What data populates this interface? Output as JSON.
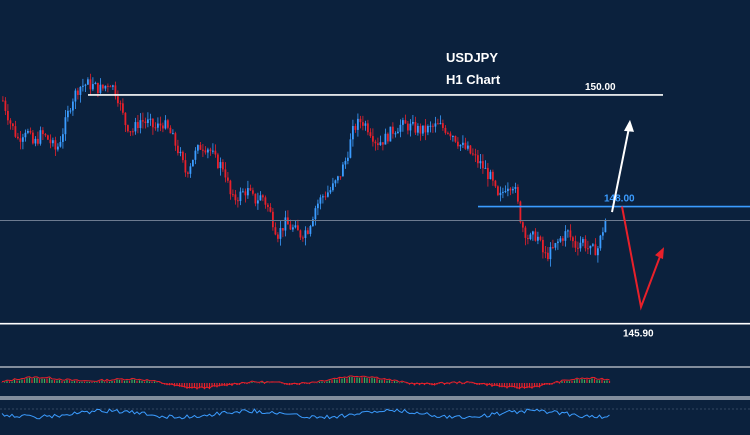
{
  "chart_data": {
    "type": "candlestick",
    "title": "USDJPY",
    "subtitle": "H1 Chart",
    "instrument": "USDJPY",
    "timeframe": "H1",
    "ylim": [
      145.5,
      151.2
    ],
    "levels": [
      {
        "label": "150.00",
        "value": 150.0,
        "color": "#ffffff"
      },
      {
        "label": "148.00",
        "value": 148.0,
        "color": "#3b9cff"
      },
      {
        "label": "145.90",
        "value": 145.9,
        "color": "#ffffff"
      }
    ],
    "reference_level": {
      "value": 147.75,
      "color": "#6d7b90"
    },
    "close_path": [
      149.9,
      149.5,
      149.2,
      149.4,
      149.1,
      149.3,
      149.2,
      149.0,
      149.4,
      149.9,
      150.15,
      150.2,
      150.15,
      150.1,
      150.25,
      150.0,
      149.5,
      149.35,
      149.55,
      149.5,
      149.4,
      149.5,
      149.3,
      149.0,
      148.6,
      148.9,
      149.1,
      149.05,
      148.8,
      148.7,
      148.1,
      148.2,
      148.3,
      148.1,
      148.2,
      147.9,
      147.5,
      147.7,
      147.6,
      147.5,
      147.6,
      148.0,
      148.2,
      148.3,
      148.5,
      148.85,
      149.4,
      149.55,
      149.4,
      149.15,
      149.2,
      149.35,
      149.45,
      149.45,
      149.4,
      149.35,
      149.4,
      149.45,
      149.4,
      149.3,
      149.1,
      149.0,
      148.85,
      148.7,
      148.5,
      148.1,
      148.4,
      148.4,
      147.7,
      147.4,
      147.5,
      147.1,
      147.2,
      147.4,
      147.55,
      147.3,
      147.4,
      147.2,
      147.25,
      147.75
    ],
    "bull_color": "#3b9cff",
    "bear_color": "#e8202a",
    "projections": [
      {
        "direction": "up",
        "color": "#ffffff",
        "from": 147.9,
        "to": 149.5
      },
      {
        "direction": "down-then-up",
        "color": "#e8202a",
        "from": 148.0,
        "low": 146.2,
        "to": 147.2
      }
    ],
    "indicators": [
      {
        "type": "oscillator",
        "bull_color": "#3fae5a",
        "bear_color": "#e8202a"
      },
      {
        "type": "line",
        "color": "#3b9cff"
      }
    ]
  }
}
